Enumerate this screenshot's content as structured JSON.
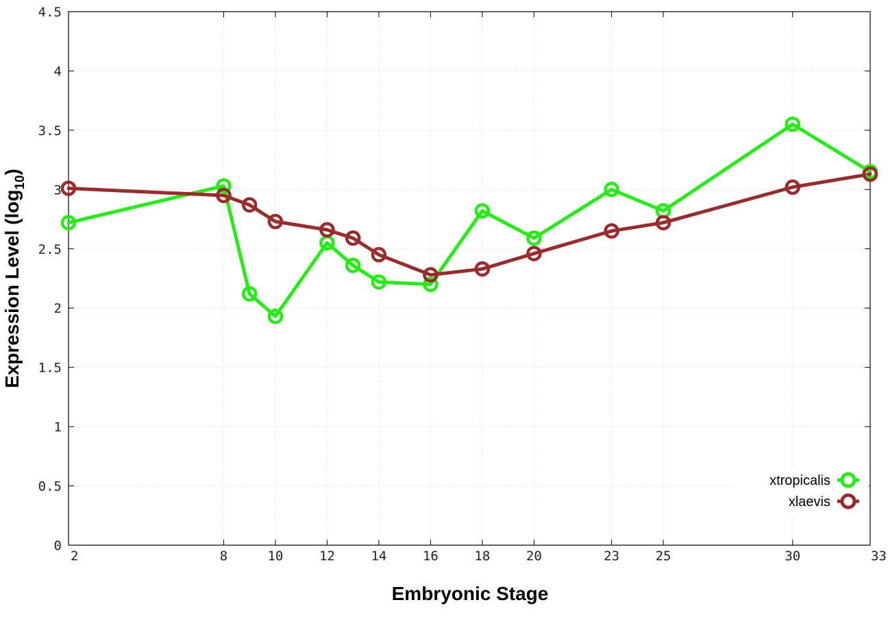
{
  "chart_data": {
    "type": "line",
    "xlabel": "Embryonic Stage",
    "ylabel_main": "Expression Level (log",
    "ylabel_sub": "10",
    "ylabel_close": ")",
    "xlim": [
      2,
      33
    ],
    "ylim": [
      0,
      4.5
    ],
    "x_ticks": [
      2,
      8,
      10,
      12,
      14,
      16,
      18,
      20,
      23,
      25,
      30,
      33
    ],
    "y_ticks": [
      {
        "value": 0,
        "label": "0"
      },
      {
        "value": 0.5,
        "label": "0.5"
      },
      {
        "value": 1,
        "label": "1"
      },
      {
        "value": 1.5,
        "label": "1.5"
      },
      {
        "value": 2,
        "label": "2"
      },
      {
        "value": 2.5,
        "label": "2.5"
      },
      {
        "value": 3,
        "label": "3"
      },
      {
        "value": 3.5,
        "label": "3.5"
      },
      {
        "value": 4,
        "label": "4"
      },
      {
        "value": 4.5,
        "label": "4.5"
      }
    ],
    "grid": true,
    "legend_position": "bottom-right",
    "series": [
      {
        "name": "xtropicalis",
        "color": "#22ee11",
        "x": [
          2,
          8,
          9,
          10,
          12,
          13,
          14,
          16,
          18,
          20,
          23,
          25,
          30,
          33
        ],
        "y": [
          2.72,
          3.03,
          2.12,
          1.93,
          2.55,
          2.36,
          2.22,
          2.2,
          2.82,
          2.59,
          3.0,
          2.82,
          3.55,
          3.15
        ]
      },
      {
        "name": "xlaevis",
        "color": "#9b2a2a",
        "x": [
          2,
          8,
          9,
          10,
          12,
          13,
          14,
          16,
          18,
          20,
          23,
          25,
          30,
          33
        ],
        "y": [
          3.01,
          2.95,
          2.87,
          2.73,
          2.66,
          2.59,
          2.45,
          2.28,
          2.33,
          2.46,
          2.65,
          2.72,
          3.02,
          3.13
        ]
      }
    ]
  }
}
